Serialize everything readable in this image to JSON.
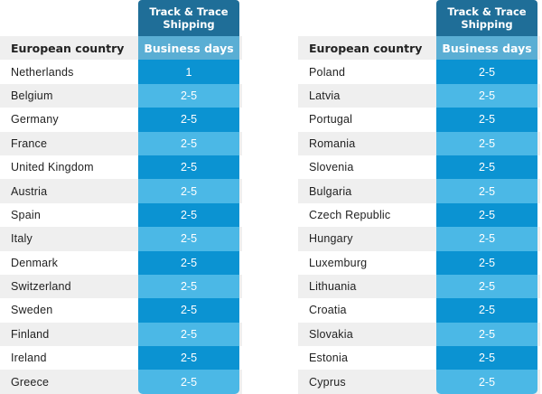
{
  "colors": {
    "header_top": "#1f6e98",
    "header_cell": "#5aaed4",
    "cell_dark": "#0b93d2",
    "cell_light": "#4bb8e6",
    "row_shade": "#efefef"
  },
  "left": {
    "top_header": "Track & Trace Shipping",
    "country_header": "European country",
    "days_header": "Business days",
    "rows": [
      {
        "country": "Netherlands",
        "days": "1"
      },
      {
        "country": "Belgium",
        "days": "2-5"
      },
      {
        "country": "Germany",
        "days": "2-5"
      },
      {
        "country": "France",
        "days": "2-5"
      },
      {
        "country": "United Kingdom",
        "days": "2-5"
      },
      {
        "country": "Austria",
        "days": "2-5"
      },
      {
        "country": "Spain",
        "days": "2-5"
      },
      {
        "country": "Italy",
        "days": "2-5"
      },
      {
        "country": "Denmark",
        "days": "2-5"
      },
      {
        "country": "Switzerland",
        "days": "2-5"
      },
      {
        "country": "Sweden",
        "days": "2-5"
      },
      {
        "country": "Finland",
        "days": "2-5"
      },
      {
        "country": "Ireland",
        "days": "2-5"
      },
      {
        "country": "Greece",
        "days": "2-5"
      }
    ]
  },
  "right": {
    "top_header": "Track & Trace Shipping",
    "country_header": "European country",
    "days_header": "Business days",
    "rows": [
      {
        "country": "Poland",
        "days": "2-5"
      },
      {
        "country": "Latvia",
        "days": "2-5"
      },
      {
        "country": "Portugal",
        "days": "2-5"
      },
      {
        "country": "Romania",
        "days": "2-5"
      },
      {
        "country": "Slovenia",
        "days": "2-5"
      },
      {
        "country": "Bulgaria",
        "days": "2-5"
      },
      {
        "country": "Czech Republic",
        "days": "2-5"
      },
      {
        "country": "Hungary",
        "days": "2-5"
      },
      {
        "country": "Luxemburg",
        "days": "2-5"
      },
      {
        "country": "Lithuania",
        "days": "2-5"
      },
      {
        "country": "Croatia",
        "days": "2-5"
      },
      {
        "country": "Slovakia",
        "days": "2-5"
      },
      {
        "country": "Estonia",
        "days": "2-5"
      },
      {
        "country": "Cyprus",
        "days": "2-5"
      }
    ]
  }
}
